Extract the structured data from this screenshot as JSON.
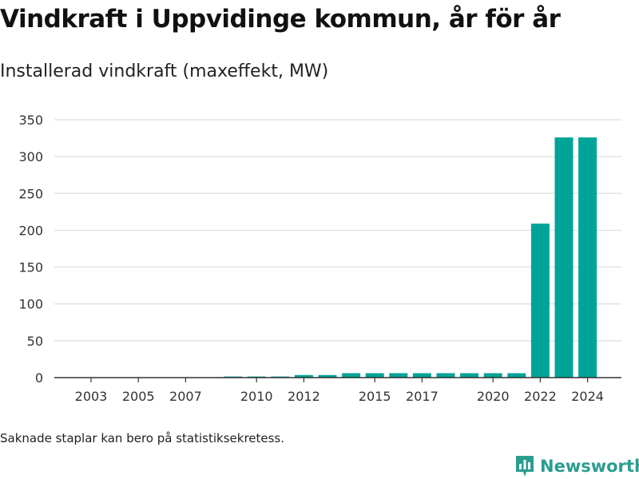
{
  "header": {
    "title": "Vindkraft i Uppvidinge kommun, år för år",
    "subtitle": "Installerad vindkraft (maxeffekt, MW)"
  },
  "footer": {
    "note": "Saknade staplar kan bero på statistiksekretess.",
    "brand_name": "Newsworthy",
    "brand_icon": "bar-chart-logo-icon"
  },
  "colors": {
    "bar": "#00a398",
    "grid": "#dddddd",
    "axis": "#333333",
    "brand": "#2b9d8f"
  },
  "chart_data": {
    "type": "bar",
    "x": [
      2003,
      2004,
      2005,
      2006,
      2007,
      2008,
      2009,
      2010,
      2011,
      2012,
      2013,
      2014,
      2015,
      2016,
      2017,
      2018,
      2019,
      2020,
      2021,
      2022,
      2023,
      2024
    ],
    "values": [
      0,
      0,
      0,
      0,
      0,
      0,
      1.5,
      1.5,
      1.5,
      3.5,
      3.5,
      6,
      6,
      6,
      6,
      6,
      6,
      6,
      6,
      209,
      326,
      326
    ],
    "x_tick_labels": [
      "2003",
      "2005",
      "2007",
      "2010",
      "2012",
      "2015",
      "2017",
      "2020",
      "2022",
      "2024"
    ],
    "y_ticks": [
      0,
      50,
      100,
      150,
      200,
      250,
      300,
      350
    ],
    "ylim": [
      0,
      350
    ],
    "grid": true
  }
}
